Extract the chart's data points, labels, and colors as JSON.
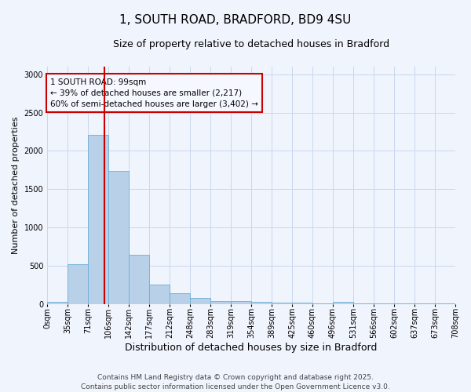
{
  "title": "1, SOUTH ROAD, BRADFORD, BD9 4SU",
  "subtitle": "Size of property relative to detached houses in Bradford",
  "xlabel": "Distribution of detached houses by size in Bradford",
  "ylabel": "Number of detached properties",
  "bar_values": [
    30,
    520,
    2210,
    1740,
    640,
    255,
    140,
    80,
    45,
    35,
    25,
    20,
    15,
    10,
    30,
    5,
    5,
    5,
    5,
    5
  ],
  "bar_labels": [
    "0sqm",
    "35sqm",
    "71sqm",
    "106sqm",
    "142sqm",
    "177sqm",
    "212sqm",
    "248sqm",
    "283sqm",
    "319sqm",
    "354sqm",
    "389sqm",
    "425sqm",
    "460sqm",
    "496sqm",
    "531sqm",
    "566sqm",
    "602sqm",
    "637sqm",
    "673sqm",
    "708sqm"
  ],
  "bar_color": "#b8d0e8",
  "bar_edge_color": "#6aaed6",
  "vline_x_bar_index": 2.85,
  "vline_color": "#cc0000",
  "annotation_text": "1 SOUTH ROAD: 99sqm\n← 39% of detached houses are smaller (2,217)\n60% of semi-detached houses are larger (3,402) →",
  "annotation_box_color": "#cc0000",
  "annotation_box_bg": "#f5f8ff",
  "ylim": [
    0,
    3100
  ],
  "yticks": [
    0,
    500,
    1000,
    1500,
    2000,
    2500,
    3000
  ],
  "background_color": "#f0f4fc",
  "grid_color": "#c8d8ee",
  "footer": "Contains HM Land Registry data © Crown copyright and database right 2025.\nContains public sector information licensed under the Open Government Licence v3.0.",
  "title_fontsize": 11,
  "subtitle_fontsize": 9,
  "xlabel_fontsize": 9,
  "ylabel_fontsize": 8,
  "tick_fontsize": 7,
  "footer_fontsize": 6.5,
  "annotation_fontsize": 7.5
}
